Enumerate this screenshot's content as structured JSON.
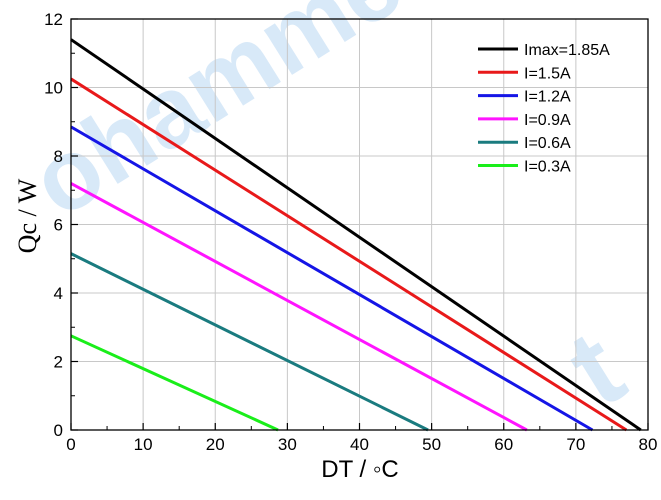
{
  "chart_data": {
    "type": "line",
    "xlabel": "DT / ◦C",
    "ylabel": "Qc / W",
    "xlim": [
      0,
      80
    ],
    "ylim": [
      0,
      12
    ],
    "xticks": [
      "0",
      "10",
      "20",
      "30",
      "40",
      "50",
      "60",
      "70",
      "80"
    ],
    "yticks": [
      "0",
      "2",
      "4",
      "6",
      "8",
      "10",
      "12"
    ],
    "grid": true,
    "legend_position": "top-right",
    "series": [
      {
        "name": "Imax=1.85A",
        "color": "#000000",
        "x": [
          0,
          79
        ],
        "y": [
          11.4,
          0
        ]
      },
      {
        "name": "I=1.5A",
        "color": "#e8191a",
        "x": [
          0,
          77
        ],
        "y": [
          10.25,
          0
        ]
      },
      {
        "name": "I=1.2A",
        "color": "#1515e6",
        "x": [
          0,
          72.3
        ],
        "y": [
          8.85,
          0
        ]
      },
      {
        "name": "I=0.9A",
        "color": "#ff14ff",
        "x": [
          0,
          63.2
        ],
        "y": [
          7.2,
          0
        ]
      },
      {
        "name": "I=0.6A",
        "color": "#1a7b7f",
        "x": [
          0,
          49.5
        ],
        "y": [
          5.15,
          0
        ]
      },
      {
        "name": "I=0.3A",
        "color": "#1aee1a",
        "x": [
          0,
          28.7
        ],
        "y": [
          2.75,
          0
        ]
      }
    ]
  },
  "watermark": {
    "text": "ohamme",
    "text2": "t",
    "color": "#1e7fd8"
  }
}
